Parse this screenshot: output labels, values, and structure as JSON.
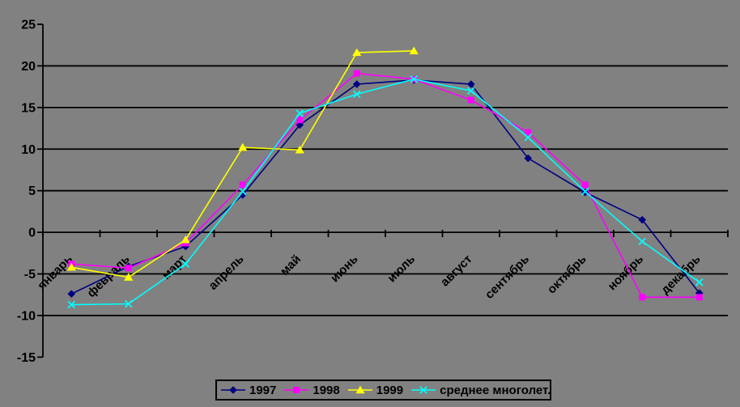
{
  "chart_data": {
    "type": "line",
    "title": "",
    "xlabel": "",
    "ylabel": "",
    "categories": [
      "январь",
      "февраль",
      "март",
      "апрель",
      "май",
      "июнь",
      "июль",
      "август",
      "сентябрь",
      "октябрь",
      "ноябрь",
      "декабрь"
    ],
    "y_ticks": [
      25,
      20,
      15,
      10,
      5,
      0,
      -5,
      -10,
      -15
    ],
    "ylim": [
      -15,
      25
    ],
    "grid": "horizontal-only",
    "legend_position": "bottom",
    "background_color": "#818181",
    "gridline_color": "#000000",
    "series": [
      {
        "name": "1997",
        "color": "#000080",
        "marker": "diamond",
        "values": [
          -7.4,
          -4.1,
          -1.7,
          4.5,
          12.9,
          17.8,
          18.3,
          17.8,
          8.9,
          4.8,
          1.5,
          -7.3
        ]
      },
      {
        "name": "1998",
        "color": "#FF00FF",
        "marker": "square",
        "values": [
          -3.8,
          -4.3,
          -1.3,
          5.7,
          13.5,
          19.1,
          18.4,
          15.9,
          12.0,
          5.7,
          -7.8,
          -7.8
        ]
      },
      {
        "name": "1999",
        "color": "#FFFF00",
        "marker": "triangle",
        "values": [
          -4.2,
          -5.4,
          -0.9,
          10.2,
          9.9,
          21.6,
          21.8,
          null,
          null,
          null,
          null,
          null
        ]
      },
      {
        "name": "среднее многолет.",
        "color": "#00FFFF",
        "marker": "x",
        "values": [
          -8.7,
          -8.6,
          -3.8,
          4.9,
          14.3,
          16.6,
          18.4,
          17.0,
          11.4,
          4.9,
          -1.1,
          -6.0
        ]
      }
    ]
  }
}
